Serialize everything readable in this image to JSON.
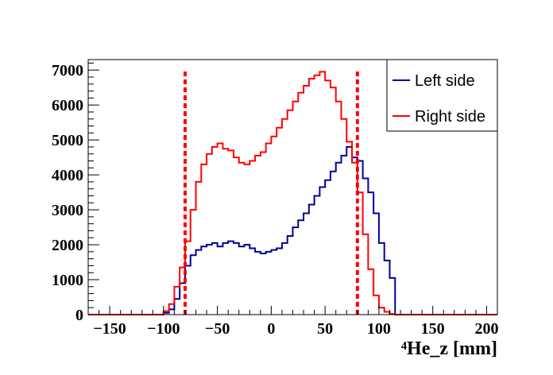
{
  "chart_data": {
    "type": "line",
    "title": "",
    "xlabel": "⁴He_z [mm]",
    "ylabel": "",
    "xlim": [
      -170,
      210
    ],
    "ylim": [
      0,
      7300
    ],
    "bin_width": 5,
    "x_ticks": [
      -150,
      -100,
      -50,
      0,
      50,
      100,
      150,
      200
    ],
    "x_tick_labels": [
      "−150",
      "−100",
      "−50",
      "0",
      "50",
      "100",
      "150",
      "200"
    ],
    "y_ticks": [
      0,
      1000,
      2000,
      3000,
      4000,
      5000,
      6000,
      7000
    ],
    "y_tick_labels": [
      "0",
      "1000",
      "2000",
      "3000",
      "4000",
      "5000",
      "6000",
      "7000"
    ],
    "grid": false,
    "legend_position": "top-right",
    "series": [
      {
        "name": "Left side",
        "color": "#000099",
        "bin_start": [
          -100,
          -95,
          -90,
          -85,
          -80,
          -75,
          -70,
          -65,
          -60,
          -55,
          -50,
          -45,
          -40,
          -35,
          -30,
          -25,
          -20,
          -15,
          -10,
          -5,
          0,
          5,
          10,
          15,
          20,
          25,
          30,
          35,
          40,
          45,
          50,
          55,
          60,
          65,
          70,
          75,
          80,
          85,
          90,
          95,
          100,
          105,
          110
        ],
        "values": [
          50,
          150,
          450,
          900,
          1400,
          1700,
          1850,
          1950,
          2000,
          2050,
          1950,
          2050,
          2100,
          2050,
          1950,
          2000,
          1900,
          1800,
          1750,
          1800,
          1850,
          1900,
          2050,
          2250,
          2500,
          2700,
          2900,
          3150,
          3400,
          3650,
          3850,
          4100,
          4350,
          4550,
          4800,
          4500,
          4400,
          3900,
          3500,
          2900,
          2050,
          1550,
          1050
        ]
      },
      {
        "name": "Right side",
        "color": "#ff0000",
        "bin_start": [
          -100,
          -95,
          -90,
          -85,
          -80,
          -75,
          -70,
          -65,
          -60,
          -55,
          -50,
          -45,
          -40,
          -35,
          -30,
          -25,
          -20,
          -15,
          -10,
          -5,
          0,
          5,
          10,
          15,
          20,
          25,
          30,
          35,
          40,
          45,
          50,
          55,
          60,
          65,
          70,
          75,
          80,
          85,
          90,
          95,
          100,
          105,
          110
        ],
        "values": [
          100,
          300,
          800,
          1350,
          2100,
          3000,
          3800,
          4300,
          4600,
          4800,
          4900,
          4750,
          4700,
          4500,
          4350,
          4300,
          4400,
          4550,
          4650,
          4900,
          5100,
          5350,
          5600,
          5850,
          6100,
          6350,
          6550,
          6750,
          6850,
          6950,
          6700,
          6500,
          6100,
          5600,
          4950,
          4350,
          3500,
          2300,
          1300,
          550,
          200,
          80,
          20
        ]
      }
    ],
    "marker_lines": {
      "color": "#ff0000",
      "style": "dashed",
      "x": [
        -80,
        80
      ]
    }
  }
}
